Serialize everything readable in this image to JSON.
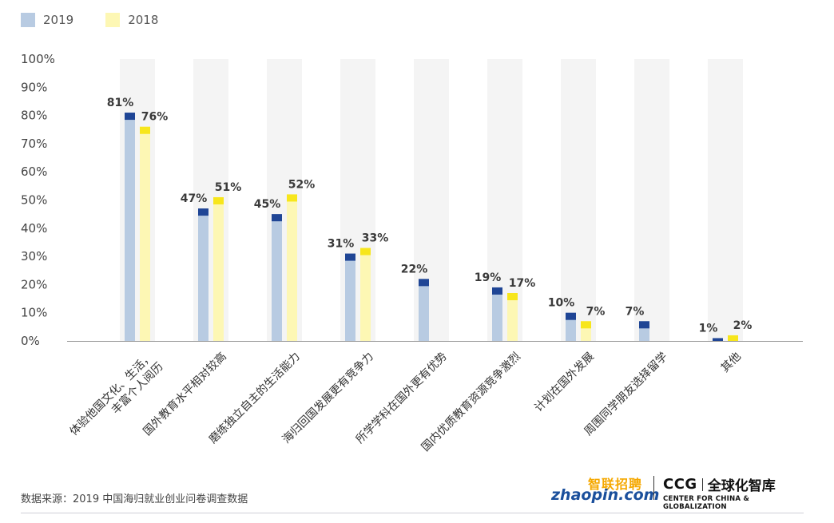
{
  "chart_data": {
    "type": "bar",
    "categories": [
      "体验他国文化、生活，丰富个人阅历",
      "国外教育水平相对较高",
      "磨练独立自主的生活能力",
      "海归回国发展更有竞争力",
      "所学学科在国外更有优势",
      "国内优质教育资源竞争激烈",
      "计划在国外发展",
      "周围同学朋友选择留学",
      "其他"
    ],
    "series": [
      {
        "name": "2019",
        "values": [
          81,
          47,
          45,
          31,
          22,
          19,
          10,
          7,
          1
        ],
        "labels": [
          "81%",
          "47%",
          "45%",
          "31%",
          "22%",
          "19%",
          "10%",
          "7%",
          "1%"
        ]
      },
      {
        "name": "2018",
        "values": [
          76,
          51,
          52,
          33,
          null,
          17,
          7,
          null,
          2
        ],
        "labels": [
          "76%",
          "51%",
          "52%",
          "33%",
          "",
          "17%",
          "7%",
          "",
          "2%"
        ]
      }
    ],
    "ylim": [
      0,
      100
    ],
    "yticks": [
      "0%",
      "10%",
      "20%",
      "30%",
      "40%",
      "50%",
      "60%",
      "70%",
      "80%",
      "90%",
      "100%"
    ],
    "legend_position": "top-left",
    "colors": {
      "s2019_body": "#b8cbe2",
      "s2019_cap": "#1f4595",
      "s2018_body": "#fdf7b4",
      "s2018_cap": "#f7e61c",
      "column_bg": "#f4f4f4",
      "axis": "#9a9a9a"
    }
  },
  "legend": {
    "items": [
      {
        "label": "2019",
        "color": "#b8cbe2"
      },
      {
        "label": "2018",
        "color": "#fdf7b4"
      }
    ]
  },
  "footer": {
    "source": "数据来源：2019 中国海归就业创业问卷调查数据",
    "logo_zhaopin_top": "智联招聘",
    "logo_zhaopin_bottom": "zhaopin.com",
    "logo_ccg_abbr": "CCG",
    "logo_ccg_cn": "全球化智库",
    "logo_ccg_en": "CENTER FOR CHINA & GLOBALIZATION"
  }
}
